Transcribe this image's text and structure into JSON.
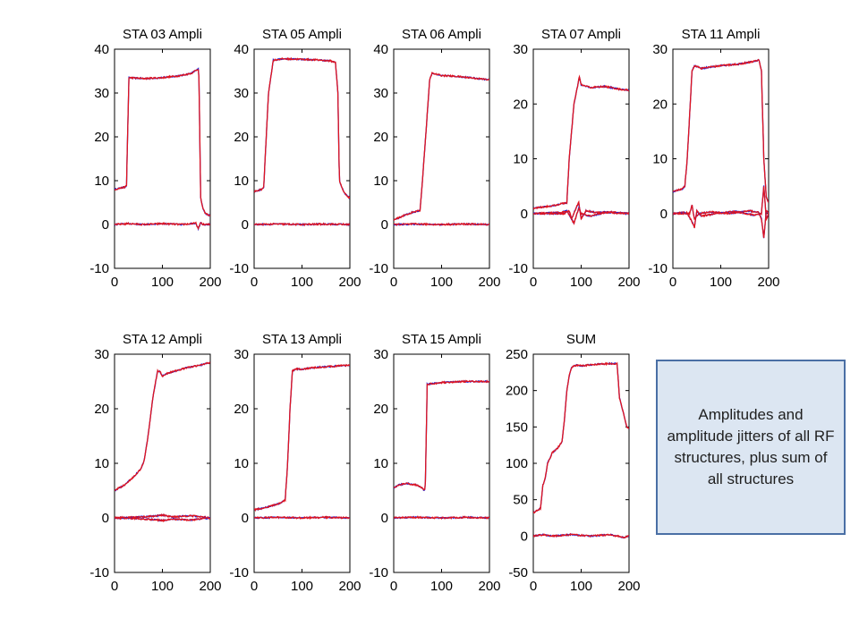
{
  "note": {
    "text": "Amplitudes and amplitude jitters of all RF structures, plus sum of all structures"
  },
  "colors": {
    "series_blue": "#1f1fd6",
    "series_red": "#e0141e",
    "box_fill": "#dce6f2",
    "box_border": "#4a6fa5"
  },
  "chart_data": [
    {
      "type": "line",
      "title": "STA 03 Ampli",
      "xlim": [
        0,
        200
      ],
      "ylim": [
        -10,
        40
      ],
      "xticks": [
        "0",
        "100",
        "200"
      ],
      "yticks": [
        "-10",
        "0",
        "10",
        "20",
        "30",
        "40"
      ],
      "series": [
        {
          "x": [
            0,
            20,
            25,
            30,
            60,
            100,
            140,
            160,
            172,
            176,
            180,
            185,
            190,
            200
          ],
          "y": [
            8,
            8.5,
            8.8,
            33.5,
            33.3,
            33.5,
            34,
            34.5,
            35.3,
            35.5,
            6,
            3.5,
            2.5,
            2
          ]
        },
        {
          "x": [
            0,
            30,
            60,
            100,
            140,
            170,
            175,
            180,
            185,
            200
          ],
          "y": [
            0,
            0.2,
            0,
            0.2,
            0,
            0.3,
            -1,
            0.5,
            0,
            0
          ]
        }
      ]
    },
    {
      "type": "line",
      "title": "STA 05 Ampli",
      "xlim": [
        0,
        200
      ],
      "ylim": [
        -10,
        40
      ],
      "xticks": [
        "0",
        "100",
        "200"
      ],
      "yticks": [
        "-10",
        "0",
        "10",
        "20",
        "30",
        "40"
      ],
      "series": [
        {
          "x": [
            0,
            15,
            20,
            30,
            40,
            60,
            100,
            140,
            160,
            170,
            175,
            178,
            185,
            190,
            200
          ],
          "y": [
            7.5,
            8,
            8.5,
            30,
            37.5,
            37.8,
            37.7,
            37.5,
            37.3,
            37,
            30,
            10,
            8,
            7,
            6
          ]
        },
        {
          "x": [
            0,
            50,
            100,
            150,
            200
          ],
          "y": [
            0,
            0.1,
            0,
            0.1,
            0
          ]
        }
      ]
    },
    {
      "type": "line",
      "title": "STA 06 Ampli",
      "xlim": [
        0,
        200
      ],
      "ylim": [
        -10,
        40
      ],
      "xticks": [
        "0",
        "100",
        "200"
      ],
      "yticks": [
        "-10",
        "0",
        "10",
        "20",
        "30",
        "40"
      ],
      "series": [
        {
          "x": [
            0,
            20,
            40,
            55,
            60,
            70,
            75,
            80,
            100,
            130,
            160,
            200
          ],
          "y": [
            1,
            2,
            2.8,
            3.2,
            10,
            25,
            33,
            34.5,
            34,
            33.8,
            33.5,
            33
          ]
        },
        {
          "x": [
            0,
            50,
            100,
            150,
            200
          ],
          "y": [
            0,
            0.1,
            0,
            0.1,
            0
          ]
        }
      ]
    },
    {
      "type": "line",
      "title": "STA 07 Ampli",
      "xlim": [
        0,
        200
      ],
      "ylim": [
        -10,
        30
      ],
      "xticks": [
        "0",
        "100",
        "200"
      ],
      "yticks": [
        "-10",
        "0",
        "10",
        "20",
        "30"
      ],
      "series": [
        {
          "x": [
            0,
            40,
            70,
            75,
            85,
            92,
            96,
            100,
            120,
            150,
            180,
            200
          ],
          "y": [
            1,
            1.4,
            2,
            10,
            20,
            23,
            25,
            23.5,
            23,
            23.2,
            22.7,
            22.5
          ]
        },
        {
          "x": [
            0,
            60,
            70,
            80,
            90,
            95,
            100,
            110,
            130,
            160,
            200
          ],
          "y": [
            0,
            0.2,
            0.5,
            -1,
            1.2,
            2,
            -1,
            0.5,
            0.2,
            0.3,
            0
          ]
        },
        {
          "x": [
            0,
            65,
            75,
            80,
            85,
            95,
            100,
            120,
            150,
            200
          ],
          "y": [
            0,
            0,
            0.5,
            -1,
            -1.8,
            1,
            0,
            -0.5,
            0.2,
            0
          ]
        }
      ]
    },
    {
      "type": "line",
      "title": "STA 11 Ampli",
      "xlim": [
        0,
        200
      ],
      "ylim": [
        -10,
        30
      ],
      "xticks": [
        "0",
        "100",
        "200"
      ],
      "yticks": [
        "-10",
        "0",
        "10",
        "20",
        "30"
      ],
      "series": [
        {
          "x": [
            0,
            20,
            25,
            30,
            40,
            45,
            60,
            100,
            140,
            170,
            180,
            185,
            190,
            195,
            200
          ],
          "y": [
            4,
            4.5,
            5,
            10,
            26,
            27,
            26.5,
            27,
            27.3,
            27.8,
            28,
            26,
            10,
            3,
            2
          ]
        },
        {
          "x": [
            0,
            25,
            35,
            40,
            45,
            55,
            80,
            120,
            160,
            180,
            185,
            190,
            195,
            200
          ],
          "y": [
            0,
            0.2,
            0,
            1.5,
            -1,
            0,
            0.3,
            0,
            0.5,
            0.2,
            -1,
            -4.5,
            0.5,
            0
          ]
        },
        {
          "x": [
            0,
            30,
            40,
            45,
            50,
            60,
            90,
            130,
            170,
            185,
            190,
            195,
            200
          ],
          "y": [
            0,
            0,
            -1.5,
            -2.5,
            0.5,
            -0.5,
            0,
            0.4,
            -0.3,
            0,
            5,
            -1,
            0
          ]
        }
      ]
    },
    {
      "type": "line",
      "title": "STA 12 Ampli",
      "xlim": [
        0,
        200
      ],
      "ylim": [
        -10,
        30
      ],
      "xticks": [
        "0",
        "100",
        "200"
      ],
      "yticks": [
        "-10",
        "0",
        "10",
        "20",
        "30"
      ],
      "series": [
        {
          "x": [
            0,
            20,
            40,
            55,
            62,
            70,
            80,
            90,
            95,
            100,
            110,
            130,
            150,
            180,
            200
          ],
          "y": [
            5,
            6,
            7.5,
            9,
            10.5,
            15,
            22,
            27,
            26.8,
            26,
            26.5,
            27,
            27.5,
            28,
            28.5
          ]
        },
        {
          "x": [
            0,
            40,
            80,
            100,
            120,
            160,
            200
          ],
          "y": [
            0,
            0.1,
            0.3,
            0.5,
            0.2,
            0.4,
            0
          ]
        },
        {
          "x": [
            0,
            40,
            80,
            100,
            120,
            160,
            200
          ],
          "y": [
            0,
            -0.1,
            -0.3,
            -0.5,
            -0.2,
            -0.4,
            0
          ]
        }
      ]
    },
    {
      "type": "line",
      "title": "STA 13 Ampli",
      "xlim": [
        0,
        200
      ],
      "ylim": [
        -10,
        30
      ],
      "xticks": [
        "0",
        "100",
        "200"
      ],
      "yticks": [
        "-10",
        "0",
        "10",
        "20",
        "30"
      ],
      "series": [
        {
          "x": [
            0,
            20,
            40,
            55,
            65,
            70,
            75,
            80,
            90,
            100,
            120,
            150,
            200
          ],
          "y": [
            1.5,
            1.8,
            2.3,
            2.7,
            3.3,
            10,
            20,
            27,
            27.3,
            27.2,
            27.5,
            27.7,
            28
          ]
        },
        {
          "x": [
            0,
            50,
            100,
            150,
            200
          ],
          "y": [
            0,
            0.1,
            0,
            0.1,
            0
          ]
        }
      ]
    },
    {
      "type": "line",
      "title": "STA 15 Ampli",
      "xlim": [
        0,
        200
      ],
      "ylim": [
        -10,
        30
      ],
      "xticks": [
        "0",
        "100",
        "200"
      ],
      "yticks": [
        "-10",
        "0",
        "10",
        "20",
        "30"
      ],
      "series": [
        {
          "x": [
            0,
            10,
            20,
            30,
            40,
            50,
            60,
            63,
            66,
            70,
            100,
            150,
            200
          ],
          "y": [
            5.5,
            6,
            6.2,
            6.3,
            6.1,
            6,
            5.5,
            5,
            5.5,
            24.5,
            24.8,
            25,
            25
          ]
        },
        {
          "x": [
            0,
            50,
            100,
            150,
            200
          ],
          "y": [
            0,
            0.1,
            0,
            0.1,
            0
          ]
        }
      ]
    },
    {
      "type": "line",
      "title": "SUM",
      "xlim": [
        0,
        200
      ],
      "ylim": [
        -50,
        250
      ],
      "xticks": [
        "0",
        "100",
        "200"
      ],
      "yticks": [
        "-50",
        "0",
        "50",
        "100",
        "150",
        "200",
        "250"
      ],
      "series": [
        {
          "x": [
            0,
            15,
            20,
            25,
            30,
            40,
            50,
            60,
            65,
            70,
            75,
            80,
            90,
            100,
            130,
            160,
            175,
            180,
            190,
            195,
            200
          ],
          "y": [
            32,
            38,
            70,
            80,
            100,
            115,
            120,
            130,
            160,
            200,
            220,
            232,
            235,
            234,
            236,
            237,
            237,
            190,
            165,
            150,
            148
          ]
        },
        {
          "x": [
            0,
            20,
            40,
            80,
            120,
            160,
            190,
            200
          ],
          "y": [
            0,
            2,
            0,
            2,
            0,
            2,
            -2,
            0
          ]
        }
      ]
    }
  ]
}
